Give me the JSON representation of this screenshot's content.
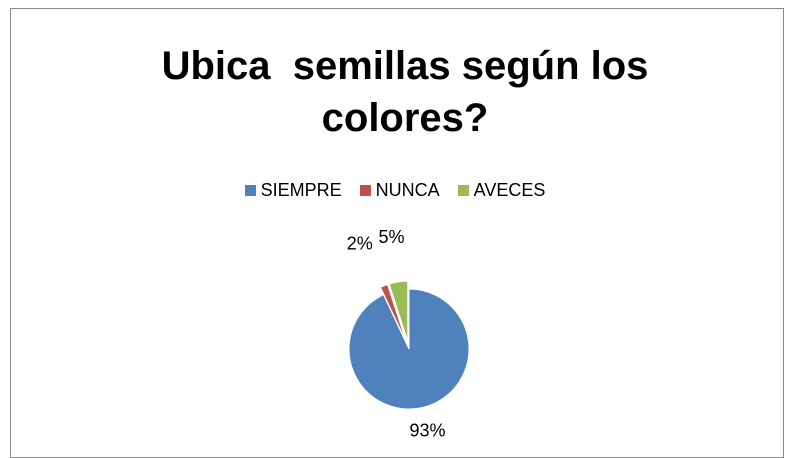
{
  "chart_data": {
    "type": "pie",
    "title": "Ubica  semillas según los colores?",
    "categories": [
      "SIEMPRE",
      "NUNCA",
      "AVECES"
    ],
    "values": [
      93,
      2,
      5
    ],
    "value_labels": [
      "93%",
      "2%",
      "5%"
    ],
    "colors": [
      "#4f81bd",
      "#c0504d",
      "#9bbb59"
    ],
    "legend": "top"
  }
}
